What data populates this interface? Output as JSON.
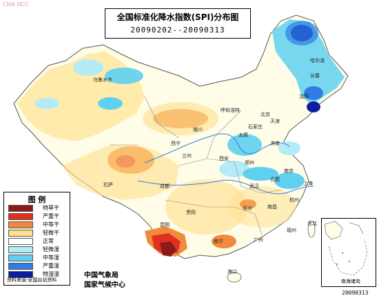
{
  "watermark": "CMA NCC",
  "title": {
    "line1": "全国标准化降水指数(SPI)分布图",
    "line2": "20090202--20090313"
  },
  "legend": {
    "title": "图 例",
    "items": [
      {
        "label": "特旱干",
        "color": "#8b1a1a"
      },
      {
        "label": "严重干",
        "color": "#e0301e"
      },
      {
        "label": "中等干",
        "color": "#f08a3c"
      },
      {
        "label": "轻微干",
        "color": "#ffe08a"
      },
      {
        "label": "正常",
        "color": "#ffffff"
      },
      {
        "label": "轻微湿",
        "color": "#b3ecf7"
      },
      {
        "label": "中等湿",
        "color": "#5fd0f0"
      },
      {
        "label": "严重湿",
        "color": "#2f7de6"
      },
      {
        "label": "特湿湿",
        "color": "#0a1fa0"
      }
    ],
    "footer": "资料来源:全国台站资料"
  },
  "agency": {
    "line1": "中国气象局",
    "line2": "国家气候中心"
  },
  "inset_label": "南海诸岛",
  "date_stamp": "20090313",
  "cities": [
    {
      "name": "乌鲁木齐"
    },
    {
      "name": "西宁"
    },
    {
      "name": "拉萨"
    },
    {
      "name": "成都"
    },
    {
      "name": "昆明"
    },
    {
      "name": "贵阳"
    },
    {
      "name": "南宁"
    },
    {
      "name": "广州"
    },
    {
      "name": "银川"
    },
    {
      "name": "兰州"
    },
    {
      "name": "西安"
    },
    {
      "name": "太原"
    },
    {
      "name": "石家庄"
    },
    {
      "name": "北京"
    },
    {
      "name": "天津"
    },
    {
      "name": "济南"
    },
    {
      "name": "郑州"
    },
    {
      "name": "武汉"
    },
    {
      "name": "长沙"
    },
    {
      "name": "南昌"
    },
    {
      "name": "合肥"
    },
    {
      "name": "南京"
    },
    {
      "name": "上海"
    },
    {
      "name": "杭州"
    },
    {
      "name": "福州"
    },
    {
      "name": "沈阳"
    },
    {
      "name": "长春"
    },
    {
      "name": "哈尔滨"
    },
    {
      "name": "呼和浩特"
    },
    {
      "name": "海口"
    },
    {
      "name": "台北"
    }
  ]
}
